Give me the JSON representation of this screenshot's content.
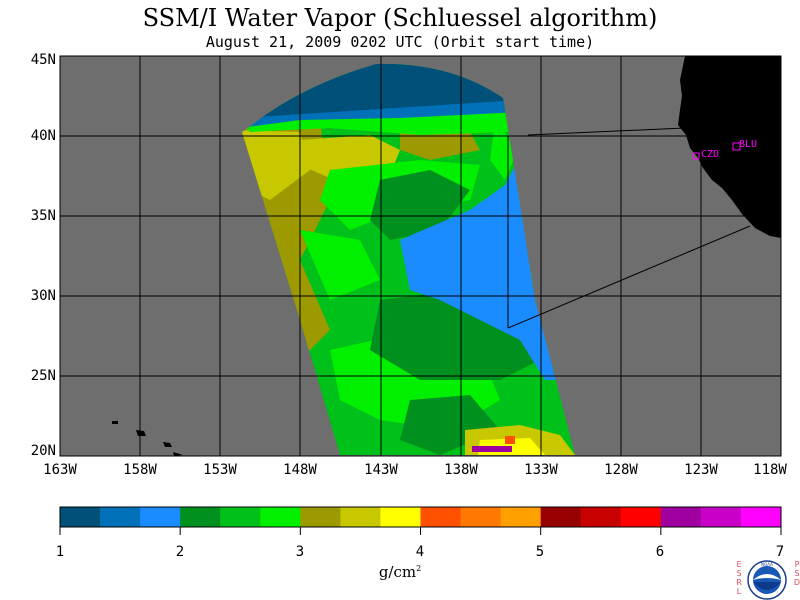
{
  "title": "SSM/I Water Vapor (Schluessel algorithm)",
  "subtitle": "August 21, 2009  0202 UTC  (Orbit start time)",
  "map": {
    "lat_labels": [
      "45N",
      "40N",
      "35N",
      "30N",
      "25N",
      "20N"
    ],
    "lon_labels": [
      "163W",
      "158W",
      "153W",
      "148W",
      "143W",
      "138W",
      "133W",
      "128W",
      "123W",
      "118W"
    ],
    "stations": [
      {
        "label": "CZD",
        "color": "#ff00ff"
      },
      {
        "label": "BLU",
        "color": "#ff00ff"
      }
    ],
    "ocean_color": "#6e6e6e",
    "land_color": "#000000"
  },
  "colorbar": {
    "colors": [
      "#00507a",
      "#0070b8",
      "#1b8cff",
      "#00901e",
      "#00c01a",
      "#00f000",
      "#9c9a00",
      "#c8c800",
      "#ffff00",
      "#ff5000",
      "#ff7800",
      "#ffa000",
      "#960000",
      "#c80000",
      "#ff0000",
      "#a000a0",
      "#c800c8",
      "#ff00ff"
    ],
    "labels": [
      "1",
      "2",
      "3",
      "4",
      "5",
      "6",
      "7"
    ],
    "units": "g/cm",
    "units_exp": "2"
  },
  "logo": {
    "left_letters": "ESRL",
    "right_letters": "PSD",
    "center_text": "NOAA"
  }
}
